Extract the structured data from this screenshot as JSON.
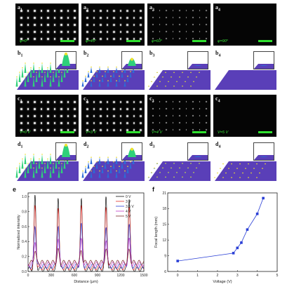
{
  "rows": {
    "a": [
      {
        "letter": "a",
        "sub": "1",
        "text": "φ=0°"
      },
      {
        "letter": "a",
        "sub": "2",
        "text": "φ=45°"
      },
      {
        "letter": "a",
        "sub": "3",
        "text": "φ=60°"
      },
      {
        "letter": "a",
        "sub": "4",
        "text": "φ=90°"
      }
    ],
    "b": [
      {
        "letter": "b",
        "sub": "1"
      },
      {
        "letter": "b",
        "sub": "2"
      },
      {
        "letter": "b",
        "sub": "3"
      },
      {
        "letter": "b",
        "sub": "4"
      }
    ],
    "c": [
      {
        "letter": "c",
        "sub": "1",
        "text": "V=0 V"
      },
      {
        "letter": "c",
        "sub": "2",
        "text": "V=3 V"
      },
      {
        "letter": "c",
        "sub": "3",
        "text": "V=4 V"
      },
      {
        "letter": "c",
        "sub": "4",
        "text": "V=5 V"
      }
    ],
    "d": [
      {
        "letter": "d",
        "sub": "1"
      },
      {
        "letter": "d",
        "sub": "2"
      },
      {
        "letter": "d",
        "sub": "3"
      },
      {
        "letter": "d",
        "sub": "4"
      }
    ]
  },
  "spot_levels": {
    "a": [
      1.0,
      0.85,
      0.35,
      0.0
    ],
    "c": [
      1.0,
      0.85,
      0.4,
      0.0
    ]
  },
  "peak_levels": {
    "b": [
      1.0,
      0.6,
      0.05,
      0.0
    ],
    "d": [
      1.0,
      0.7,
      0.08,
      0.03
    ]
  },
  "colors": {
    "spot": "#e8e8e8",
    "scalebar": "#2fe02f",
    "substrate": "#5a3fb8",
    "peak_top": "#f2e02a",
    "peak_mid": "#2fd17a",
    "peak_base": "#2c6cd6"
  },
  "chart_data": [
    {
      "panel_label": "e",
      "type": "line",
      "xlabel": "Distance (μm)",
      "ylabel": "Normalized intensity",
      "xlim": [
        0,
        1500
      ],
      "ylim": [
        0,
        1.05
      ],
      "xticks": [
        0,
        300,
        600,
        900,
        1200,
        1500
      ],
      "yticks": [
        0.0,
        0.2,
        0.4,
        0.6,
        0.8,
        1.0
      ],
      "peaks_x": [
        90,
        390,
        690,
        1010,
        1310
      ],
      "series": [
        {
          "name": "0 V",
          "color": "#111111",
          "peak": 1.0,
          "base": 0.03
        },
        {
          "name": "3 V",
          "color": "#e0302a",
          "peak": 0.88,
          "base": 0.05
        },
        {
          "name": "3.5 V",
          "color": "#2a3fd6",
          "peak": 0.62,
          "base": 0.07
        },
        {
          "name": "4 V",
          "color": "#c03ac8",
          "peak": 0.42,
          "base": 0.1
        },
        {
          "name": "5 V",
          "color": "#7a2a2a",
          "peak": 0.28,
          "base": 0.12
        }
      ]
    },
    {
      "panel_label": "f",
      "type": "line",
      "xlabel": "Voltage (V)",
      "ylabel": "Focal length (mm)",
      "xlim": [
        -0.5,
        5
      ],
      "ylim": [
        6,
        21
      ],
      "xticks": [
        0,
        1,
        2,
        3,
        4,
        5
      ],
      "yticks": [
        6,
        9,
        12,
        15,
        18,
        21
      ],
      "x": [
        0,
        2.8,
        3.0,
        3.2,
        3.5,
        4.0,
        4.3
      ],
      "y": [
        8.0,
        9.5,
        10.5,
        11.5,
        14.0,
        17.0,
        20.0
      ],
      "color": "#2a3fd6"
    }
  ]
}
